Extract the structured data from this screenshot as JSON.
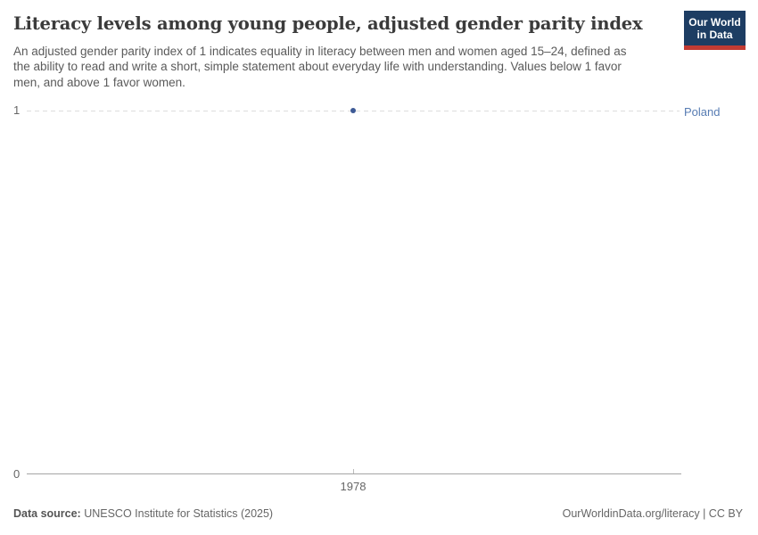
{
  "header": {
    "title": "Literacy levels among young people, adjusted gender parity index",
    "subtitle": "An adjusted gender parity index of 1 indicates equality in literacy between men and women aged 15–24, defined as the ability to read and write a short, simple statement about everyday life with understanding. Values below 1 favor men, and above 1 favor women.",
    "logo": {
      "line1": "Our World",
      "line2": "in Data"
    }
  },
  "chart_data": {
    "type": "scatter",
    "title": "Literacy levels among young people, adjusted gender parity index",
    "series": [
      {
        "name": "Poland",
        "points": [
          {
            "x": 1978,
            "y": 1
          }
        ]
      }
    ],
    "x_ticks": [
      "1978"
    ],
    "y_ticks": [
      "0",
      "1"
    ],
    "ylim": [
      0,
      1
    ],
    "xlabel": "",
    "ylabel": "",
    "grid": "single horizontal dashed gridline at y=1",
    "legend_position": "entity label at right end of gridline"
  },
  "colors": {
    "point": "#3d5a96",
    "entity_label": "#577cb3",
    "gridline": "#dddddd",
    "axis_line": "#a5a5a5",
    "logo_navy": "#1d3d63",
    "logo_red": "#c23b33"
  },
  "footer": {
    "source_label": "Data source:",
    "source_text": " UNESCO Institute for Statistics (2025)",
    "credit": "OurWorldinData.org/literacy | CC BY"
  }
}
